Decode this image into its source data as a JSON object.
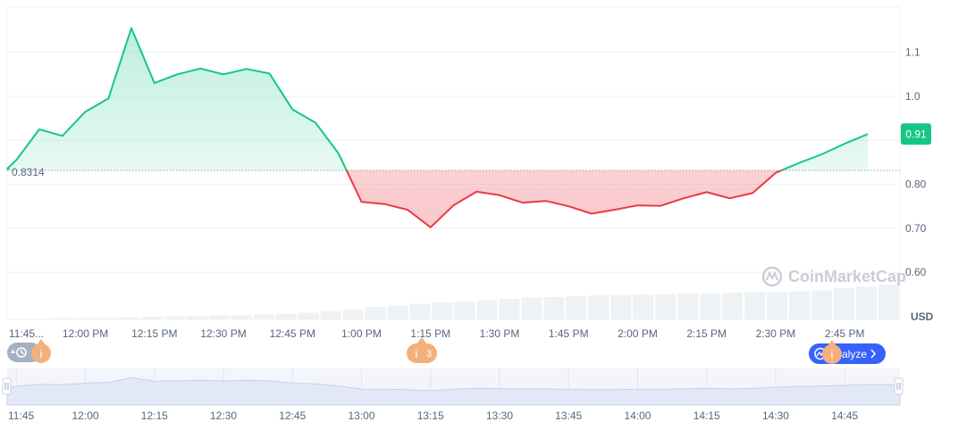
{
  "chart_data": {
    "type": "area",
    "currency_label": "USD",
    "watermark": "CoinMarketCap",
    "reference_value": 0.8314,
    "reference_label": "0.8314",
    "current_value_label": "0.91",
    "ylim": [
      0.5,
      1.2
    ],
    "y_ticks": [
      {
        "value": 0.6,
        "label": "0.60"
      },
      {
        "value": 0.7,
        "label": "0.70"
      },
      {
        "value": 0.8,
        "label": "0.80"
      },
      {
        "value": 0.9,
        "label": "0.90"
      },
      {
        "value": 1.0,
        "label": "1.0"
      },
      {
        "value": 1.1,
        "label": "1.1"
      }
    ],
    "x_range": [
      "11:43",
      "14:57"
    ],
    "x_ticks": [
      {
        "time": "11:45",
        "label": "11:45..."
      },
      {
        "time": "12:00",
        "label": "12:00 PM"
      },
      {
        "time": "12:15",
        "label": "12:15 PM"
      },
      {
        "time": "12:30",
        "label": "12:30 PM"
      },
      {
        "time": "12:45",
        "label": "12:45 PM"
      },
      {
        "time": "13:00",
        "label": "1:00 PM"
      },
      {
        "time": "13:15",
        "label": "1:15 PM"
      },
      {
        "time": "13:30",
        "label": "1:30 PM"
      },
      {
        "time": "13:45",
        "label": "1:45 PM"
      },
      {
        "time": "14:00",
        "label": "2:00 PM"
      },
      {
        "time": "14:15",
        "label": "2:15 PM"
      },
      {
        "time": "14:30",
        "label": "2:30 PM"
      },
      {
        "time": "14:45",
        "label": "2:45 PM"
      }
    ],
    "navigator_ticks": [
      {
        "time": "11:45",
        "label": "11:45"
      },
      {
        "time": "12:00",
        "label": "12:00"
      },
      {
        "time": "12:15",
        "label": "12:15"
      },
      {
        "time": "12:30",
        "label": "12:30"
      },
      {
        "time": "12:45",
        "label": "12:45"
      },
      {
        "time": "13:00",
        "label": "13:00"
      },
      {
        "time": "13:15",
        "label": "13:15"
      },
      {
        "time": "13:30",
        "label": "13:30"
      },
      {
        "time": "13:45",
        "label": "13:45"
      },
      {
        "time": "14:00",
        "label": "14:00"
      },
      {
        "time": "14:15",
        "label": "14:15"
      },
      {
        "time": "14:30",
        "label": "14:30"
      },
      {
        "time": "14:45",
        "label": "14:45"
      }
    ],
    "series": [
      {
        "points": [
          [
            "11:43",
            0.835
          ],
          [
            "11:45",
            0.855
          ],
          [
            "11:50",
            0.925
          ],
          [
            "11:55",
            0.91
          ],
          [
            "12:00",
            0.965
          ],
          [
            "12:05",
            0.995
          ],
          [
            "12:10",
            1.155
          ],
          [
            "12:15",
            1.03
          ],
          [
            "12:20",
            1.05
          ],
          [
            "12:25",
            1.063
          ],
          [
            "12:30",
            1.05
          ],
          [
            "12:35",
            1.062
          ],
          [
            "12:40",
            1.052
          ],
          [
            "12:45",
            0.97
          ],
          [
            "12:50",
            0.94
          ],
          [
            "12:55",
            0.87
          ],
          [
            "13:00",
            0.76
          ],
          [
            "13:05",
            0.755
          ],
          [
            "13:10",
            0.742
          ],
          [
            "13:15",
            0.702
          ],
          [
            "13:20",
            0.752
          ],
          [
            "13:25",
            0.783
          ],
          [
            "13:30",
            0.775
          ],
          [
            "13:35",
            0.758
          ],
          [
            "13:40",
            0.762
          ],
          [
            "13:45",
            0.75
          ],
          [
            "13:50",
            0.733
          ],
          [
            "13:55",
            0.742
          ],
          [
            "14:00",
            0.752
          ],
          [
            "14:05",
            0.751
          ],
          [
            "14:10",
            0.768
          ],
          [
            "14:15",
            0.782
          ],
          [
            "14:20",
            0.768
          ],
          [
            "14:25",
            0.78
          ],
          [
            "14:30",
            0.826
          ],
          [
            "14:35",
            0.848
          ],
          [
            "14:40",
            0.868
          ],
          [
            "14:45",
            0.892
          ],
          [
            "14:50",
            0.914
          ]
        ]
      }
    ],
    "volume_bars": [
      0.02,
      0.02,
      0.03,
      0.03,
      0.04,
      0.05,
      0.06,
      0.07,
      0.08,
      0.09,
      0.1,
      0.11,
      0.13,
      0.15,
      0.18,
      0.22,
      0.28,
      0.31,
      0.35,
      0.38,
      0.4,
      0.43,
      0.46,
      0.49,
      0.5,
      0.52,
      0.54,
      0.55,
      0.56,
      0.56,
      0.58,
      0.58,
      0.6,
      0.61,
      0.61,
      0.63,
      0.65,
      0.7,
      0.74,
      0.78
    ],
    "colors": {
      "up_line": "#16c784",
      "down_line": "#ea3943",
      "up_fill": "#16c784",
      "down_fill": "#ea3943",
      "grid": "#eff2f5",
      "axis_text": "#58667e",
      "reference_line": "#9aa1ad",
      "value_badge": "#16c784",
      "volume_bar": "#eff2f5",
      "navigator_fill": "#e3e8f7",
      "navigator_line": "#c7d0ea",
      "event_marker": "#f4b07c",
      "analyze_button": "#3861fb"
    }
  },
  "markers": {
    "history_icon": "history-clock-icon",
    "event_left_label": "i",
    "event_middle_label": "i",
    "event_middle_count": "3",
    "event_right_label": "i",
    "analyze_icon": "analyze-chart-icon",
    "analyze_label": "alyze",
    "analyze_chevron": "chevron-right-icon"
  }
}
